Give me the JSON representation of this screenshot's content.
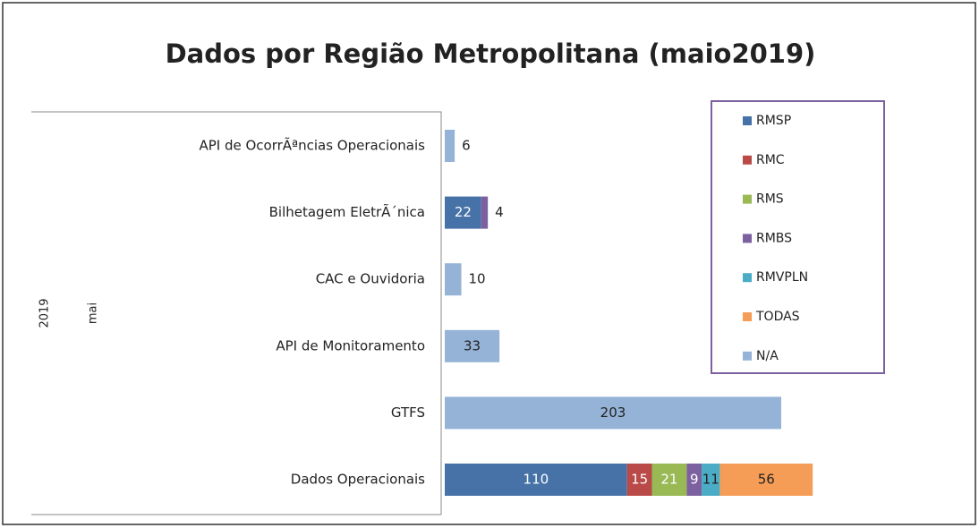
{
  "chart_data": {
    "type": "stacked_barh",
    "title": "Dados por Região Metropolitana (maio2019)",
    "row_labels": [
      "2019",
      "mai"
    ],
    "categories": [
      "API de OcorrÃªncias Operacionais",
      "Bilhetagem EletrÃ´nica",
      "CAC e Ouvidoria",
      "API de Monitoramento",
      "GTFS",
      "Dados Operacionais"
    ],
    "series": [
      {
        "name": "RMSP",
        "color": "#4672a8",
        "label_color": "#ffffff",
        "values": [
          null,
          22,
          null,
          null,
          null,
          110
        ]
      },
      {
        "name": "RMC",
        "color": "#b94a48",
        "label_color": "#ffffff",
        "values": [
          null,
          null,
          null,
          null,
          null,
          15
        ]
      },
      {
        "name": "RMS",
        "color": "#98b954",
        "label_color": "#ffffff",
        "values": [
          null,
          null,
          null,
          null,
          null,
          21
        ]
      },
      {
        "name": "RMBS",
        "color": "#7d60a0",
        "label_color": "#ffffff",
        "values": [
          null,
          4,
          null,
          null,
          null,
          9
        ]
      },
      {
        "name": "RMVPLN",
        "color": "#4bacc6",
        "label_color": "#222222",
        "values": [
          null,
          null,
          null,
          null,
          null,
          11
        ]
      },
      {
        "name": "TODAS",
        "color": "#f59d56",
        "label_color": "#222222",
        "values": [
          null,
          null,
          null,
          null,
          null,
          56
        ]
      },
      {
        "name": "N/A",
        "color": "#95b3d7",
        "label_color": "#222222",
        "values": [
          6,
          null,
          10,
          33,
          203,
          null
        ]
      }
    ],
    "legend": "top-right"
  }
}
